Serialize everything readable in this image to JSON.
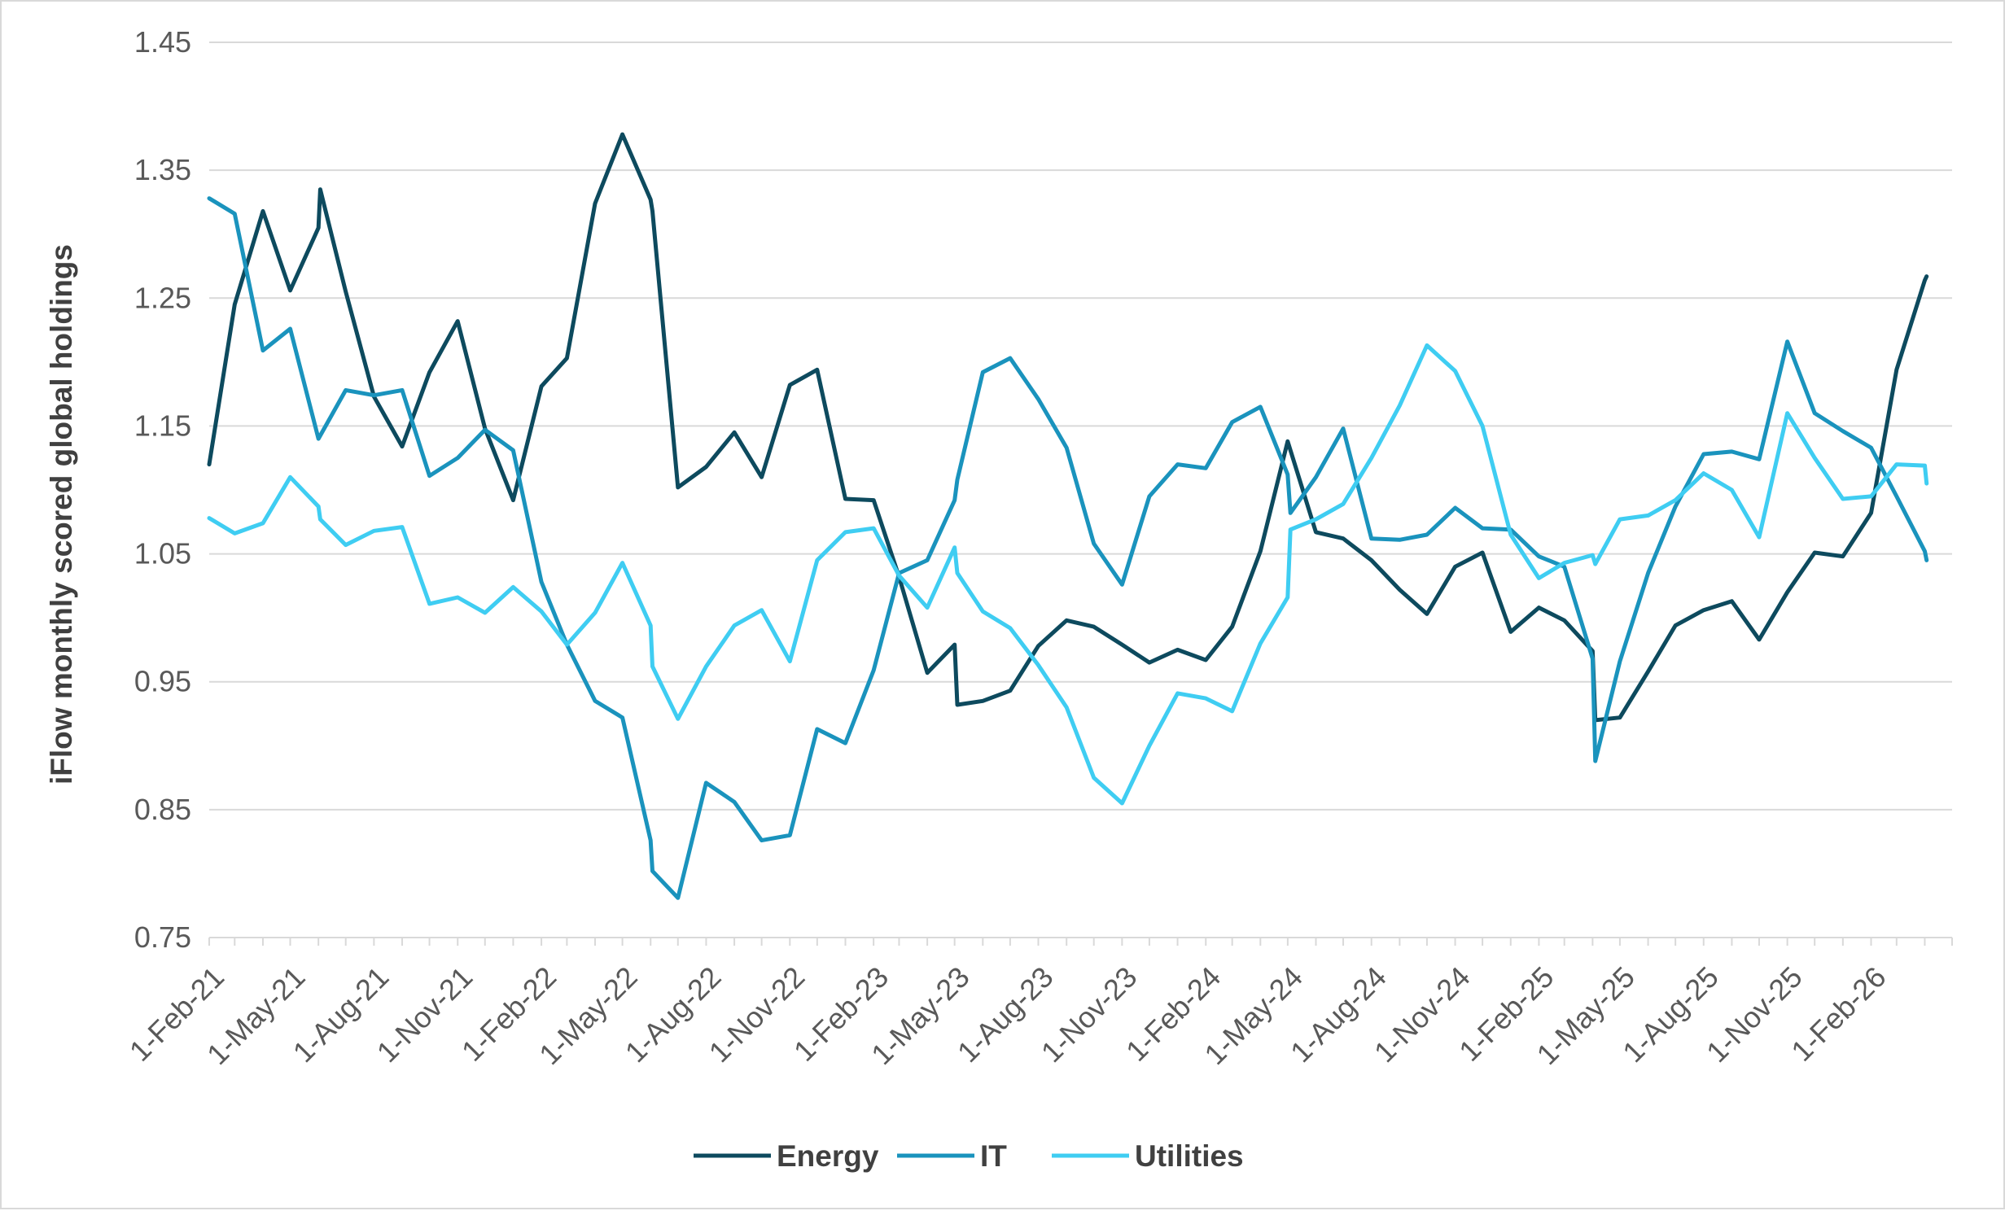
{
  "chart_data": {
    "type": "line",
    "title": "",
    "xlabel": "",
    "ylabel": "iFlow monthly scored global holdings",
    "ylim": [
      0.75,
      1.45
    ],
    "yticks": [
      "0.75",
      "0.85",
      "0.95",
      "1.05",
      "1.15",
      "1.25",
      "1.35",
      "1.45"
    ],
    "xlim": [
      "2021-02-01",
      "2026-05-01"
    ],
    "xtick_labels": [
      "1-Feb-21",
      "1-May-21",
      "1-Aug-21",
      "1-Nov-21",
      "1-Feb-22",
      "1-May-22",
      "1-Aug-22",
      "1-Nov-22",
      "1-Feb-23",
      "1-May-23",
      "1-Aug-23",
      "1-Nov-23",
      "1-Feb-24",
      "1-May-24",
      "1-Aug-24",
      "1-Nov-24",
      "1-Feb-25",
      "1-May-25",
      "1-Aug-25",
      "1-Nov-25",
      "1-Feb-26"
    ],
    "grid": true,
    "legend_position": "bottom",
    "series": [
      {
        "name": "Energy",
        "color": "#0d4a5e",
        "points": [
          [
            "2021-02-01",
            1.12
          ],
          [
            "2021-03-01",
            1.245
          ],
          [
            "2021-04-01",
            1.318
          ],
          [
            "2021-05-01",
            1.256
          ],
          [
            "2021-06-01",
            1.305
          ],
          [
            "2021-06-03",
            1.335
          ],
          [
            "2021-07-01",
            1.255
          ],
          [
            "2021-08-01",
            1.173
          ],
          [
            "2021-09-01",
            1.134
          ],
          [
            "2021-10-01",
            1.192
          ],
          [
            "2021-11-01",
            1.232
          ],
          [
            "2021-12-01",
            1.148
          ],
          [
            "2022-01-01",
            1.092
          ],
          [
            "2022-02-01",
            1.181
          ],
          [
            "2022-03-01",
            1.203
          ],
          [
            "2022-04-01",
            1.324
          ],
          [
            "2022-05-01",
            1.378
          ],
          [
            "2022-06-01",
            1.327
          ],
          [
            "2022-06-03",
            1.318
          ],
          [
            "2022-07-01",
            1.102
          ],
          [
            "2022-08-01",
            1.118
          ],
          [
            "2022-09-01",
            1.145
          ],
          [
            "2022-10-01",
            1.11
          ],
          [
            "2022-11-01",
            1.182
          ],
          [
            "2022-12-01",
            1.194
          ],
          [
            "2023-01-01",
            1.093
          ],
          [
            "2023-02-01",
            1.092
          ],
          [
            "2023-03-01",
            1.032
          ],
          [
            "2023-04-01",
            0.957
          ],
          [
            "2023-05-01",
            0.979
          ],
          [
            "2023-05-04",
            0.932
          ],
          [
            "2023-06-01",
            0.935
          ],
          [
            "2023-07-01",
            0.943
          ],
          [
            "2023-08-01",
            0.978
          ],
          [
            "2023-09-01",
            0.998
          ],
          [
            "2023-10-01",
            0.993
          ],
          [
            "2023-11-01",
            0.979
          ],
          [
            "2023-12-01",
            0.965
          ],
          [
            "2024-01-01",
            0.975
          ],
          [
            "2024-02-01",
            0.967
          ],
          [
            "2024-03-01",
            0.993
          ],
          [
            "2024-04-01",
            1.052
          ],
          [
            "2024-05-01",
            1.138
          ],
          [
            "2024-06-01",
            1.067
          ],
          [
            "2024-07-01",
            1.062
          ],
          [
            "2024-08-01",
            1.045
          ],
          [
            "2024-09-01",
            1.022
          ],
          [
            "2024-10-01",
            1.003
          ],
          [
            "2024-11-01",
            1.04
          ],
          [
            "2024-12-01",
            1.051
          ],
          [
            "2025-01-01",
            0.989
          ],
          [
            "2025-02-01",
            1.008
          ],
          [
            "2025-03-01",
            0.998
          ],
          [
            "2025-04-01",
            0.974
          ],
          [
            "2025-04-04",
            0.92
          ],
          [
            "2025-05-01",
            0.922
          ],
          [
            "2025-06-01",
            0.958
          ],
          [
            "2025-07-01",
            0.994
          ],
          [
            "2025-08-01",
            1.006
          ],
          [
            "2025-09-01",
            1.013
          ],
          [
            "2025-10-01",
            0.983
          ],
          [
            "2025-11-01",
            1.02
          ],
          [
            "2025-12-01",
            1.051
          ],
          [
            "2026-01-01",
            1.048
          ],
          [
            "2026-02-01",
            1.082
          ],
          [
            "2026-03-01",
            1.194
          ],
          [
            "2026-04-01",
            1.264
          ],
          [
            "2026-04-03",
            1.267
          ]
        ]
      },
      {
        "name": "IT",
        "color": "#1a93bd",
        "points": [
          [
            "2021-02-01",
            1.328
          ],
          [
            "2021-03-01",
            1.316
          ],
          [
            "2021-04-01",
            1.209
          ],
          [
            "2021-05-01",
            1.226
          ],
          [
            "2021-06-01",
            1.14
          ],
          [
            "2021-07-01",
            1.178
          ],
          [
            "2021-08-01",
            1.174
          ],
          [
            "2021-09-01",
            1.178
          ],
          [
            "2021-10-01",
            1.111
          ],
          [
            "2021-11-01",
            1.125
          ],
          [
            "2021-12-01",
            1.147
          ],
          [
            "2022-01-01",
            1.131
          ],
          [
            "2022-02-01",
            1.028
          ],
          [
            "2022-03-01",
            0.979
          ],
          [
            "2022-04-01",
            0.935
          ],
          [
            "2022-05-01",
            0.922
          ],
          [
            "2022-06-01",
            0.826
          ],
          [
            "2022-06-03",
            0.802
          ],
          [
            "2022-07-01",
            0.781
          ],
          [
            "2022-08-01",
            0.871
          ],
          [
            "2022-09-01",
            0.856
          ],
          [
            "2022-10-01",
            0.826
          ],
          [
            "2022-11-01",
            0.83
          ],
          [
            "2022-12-01",
            0.913
          ],
          [
            "2023-01-01",
            0.902
          ],
          [
            "2023-02-01",
            0.959
          ],
          [
            "2023-03-01",
            1.035
          ],
          [
            "2023-04-01",
            1.045
          ],
          [
            "2023-05-01",
            1.092
          ],
          [
            "2023-05-04",
            1.108
          ],
          [
            "2023-06-01",
            1.192
          ],
          [
            "2023-07-01",
            1.203
          ],
          [
            "2023-08-01",
            1.171
          ],
          [
            "2023-09-01",
            1.133
          ],
          [
            "2023-10-01",
            1.058
          ],
          [
            "2023-11-01",
            1.026
          ],
          [
            "2023-12-01",
            1.095
          ],
          [
            "2024-01-01",
            1.12
          ],
          [
            "2024-02-01",
            1.117
          ],
          [
            "2024-03-01",
            1.153
          ],
          [
            "2024-04-01",
            1.165
          ],
          [
            "2024-05-01",
            1.112
          ],
          [
            "2024-05-04",
            1.082
          ],
          [
            "2024-06-01",
            1.11
          ],
          [
            "2024-07-01",
            1.148
          ],
          [
            "2024-08-01",
            1.062
          ],
          [
            "2024-09-01",
            1.061
          ],
          [
            "2024-10-01",
            1.065
          ],
          [
            "2024-11-01",
            1.086
          ],
          [
            "2024-12-01",
            1.07
          ],
          [
            "2025-01-01",
            1.069
          ],
          [
            "2025-02-01",
            1.048
          ],
          [
            "2025-03-01",
            1.04
          ],
          [
            "2025-04-01",
            0.968
          ],
          [
            "2025-04-04",
            0.888
          ],
          [
            "2025-05-01",
            0.966
          ],
          [
            "2025-06-01",
            1.035
          ],
          [
            "2025-07-01",
            1.087
          ],
          [
            "2025-08-01",
            1.128
          ],
          [
            "2025-09-01",
            1.13
          ],
          [
            "2025-10-01",
            1.124
          ],
          [
            "2025-11-01",
            1.216
          ],
          [
            "2025-12-01",
            1.16
          ],
          [
            "2026-01-01",
            1.146
          ],
          [
            "2026-02-01",
            1.133
          ],
          [
            "2026-03-01",
            1.095
          ],
          [
            "2026-04-01",
            1.052
          ],
          [
            "2026-04-03",
            1.045
          ]
        ]
      },
      {
        "name": "Utilities",
        "color": "#3fcdf2",
        "points": [
          [
            "2021-02-01",
            1.078
          ],
          [
            "2021-03-01",
            1.066
          ],
          [
            "2021-04-01",
            1.074
          ],
          [
            "2021-05-01",
            1.11
          ],
          [
            "2021-06-01",
            1.087
          ],
          [
            "2021-06-03",
            1.077
          ],
          [
            "2021-07-01",
            1.057
          ],
          [
            "2021-08-01",
            1.068
          ],
          [
            "2021-09-01",
            1.071
          ],
          [
            "2021-10-01",
            1.011
          ],
          [
            "2021-11-01",
            1.016
          ],
          [
            "2021-12-01",
            1.004
          ],
          [
            "2022-01-01",
            1.024
          ],
          [
            "2022-02-01",
            1.005
          ],
          [
            "2022-03-01",
            0.979
          ],
          [
            "2022-04-01",
            1.004
          ],
          [
            "2022-05-01",
            1.043
          ],
          [
            "2022-06-01",
            0.994
          ],
          [
            "2022-06-03",
            0.962
          ],
          [
            "2022-07-01",
            0.921
          ],
          [
            "2022-08-01",
            0.962
          ],
          [
            "2022-09-01",
            0.994
          ],
          [
            "2022-10-01",
            1.006
          ],
          [
            "2022-11-01",
            0.966
          ],
          [
            "2022-12-01",
            1.045
          ],
          [
            "2023-01-01",
            1.067
          ],
          [
            "2023-02-01",
            1.07
          ],
          [
            "2023-03-01",
            1.033
          ],
          [
            "2023-04-01",
            1.008
          ],
          [
            "2023-05-01",
            1.055
          ],
          [
            "2023-05-04",
            1.035
          ],
          [
            "2023-06-01",
            1.005
          ],
          [
            "2023-07-01",
            0.992
          ],
          [
            "2023-08-01",
            0.963
          ],
          [
            "2023-09-01",
            0.93
          ],
          [
            "2023-10-01",
            0.875
          ],
          [
            "2023-11-01",
            0.855
          ],
          [
            "2023-12-01",
            0.9
          ],
          [
            "2024-01-01",
            0.941
          ],
          [
            "2024-02-01",
            0.937
          ],
          [
            "2024-03-01",
            0.927
          ],
          [
            "2024-04-01",
            0.98
          ],
          [
            "2024-05-01",
            1.016
          ],
          [
            "2024-05-04",
            1.069
          ],
          [
            "2024-06-01",
            1.077
          ],
          [
            "2024-07-01",
            1.089
          ],
          [
            "2024-08-01",
            1.125
          ],
          [
            "2024-09-01",
            1.166
          ],
          [
            "2024-10-01",
            1.213
          ],
          [
            "2024-11-01",
            1.193
          ],
          [
            "2024-12-01",
            1.15
          ],
          [
            "2025-01-01",
            1.065
          ],
          [
            "2025-02-01",
            1.031
          ],
          [
            "2025-03-01",
            1.043
          ],
          [
            "2025-04-01",
            1.049
          ],
          [
            "2025-04-04",
            1.042
          ],
          [
            "2025-05-01",
            1.077
          ],
          [
            "2025-06-01",
            1.08
          ],
          [
            "2025-07-01",
            1.092
          ],
          [
            "2025-08-01",
            1.113
          ],
          [
            "2025-09-01",
            1.1
          ],
          [
            "2025-10-01",
            1.063
          ],
          [
            "2025-11-01",
            1.16
          ],
          [
            "2025-12-01",
            1.125
          ],
          [
            "2026-01-01",
            1.093
          ],
          [
            "2026-02-01",
            1.095
          ],
          [
            "2026-03-01",
            1.12
          ],
          [
            "2026-04-01",
            1.119
          ],
          [
            "2026-04-03",
            1.105
          ]
        ]
      }
    ]
  }
}
